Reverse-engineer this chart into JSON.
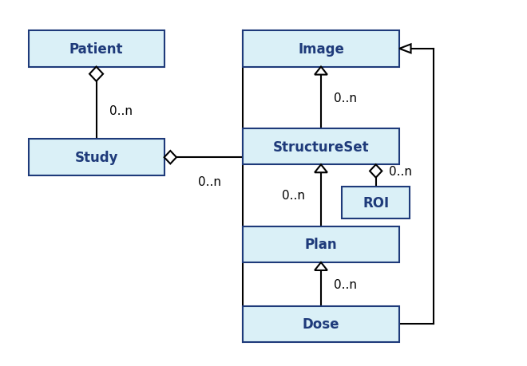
{
  "bg_color": "#ffffff",
  "box_fill": "#daf0f7",
  "box_edge": "#1e3a7a",
  "text_color": "#1e3a7a",
  "label_color": "#000000",
  "boxes": {
    "Patient": [
      0.05,
      0.82,
      0.26,
      0.1
    ],
    "Study": [
      0.05,
      0.52,
      0.26,
      0.1
    ],
    "Image": [
      0.46,
      0.82,
      0.3,
      0.1
    ],
    "StructureSet": [
      0.46,
      0.55,
      0.3,
      0.1
    ],
    "ROI": [
      0.65,
      0.4,
      0.13,
      0.09
    ],
    "Plan": [
      0.46,
      0.28,
      0.3,
      0.1
    ],
    "Dose": [
      0.46,
      0.06,
      0.3,
      0.1
    ]
  },
  "font_size": 12,
  "label_font_size": 11,
  "lw": 1.5
}
